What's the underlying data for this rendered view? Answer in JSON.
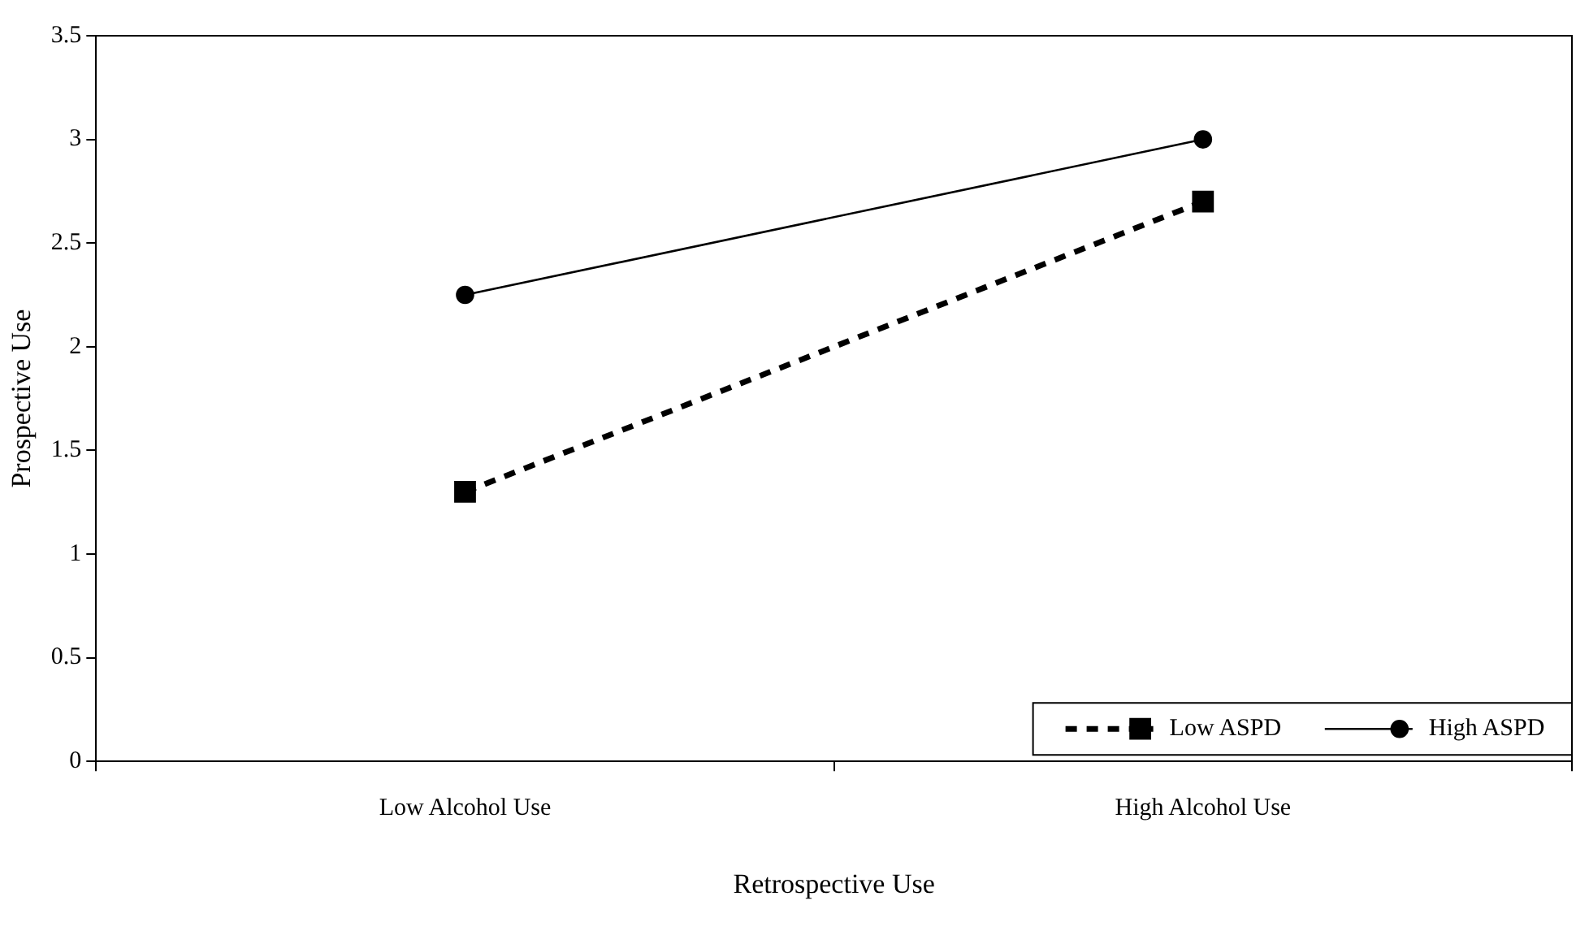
{
  "chart_data": {
    "type": "line",
    "xlabel": "Retrospective Use",
    "ylabel": "Prospective Use",
    "categories": [
      "Low Alcohol Use",
      "High Alcohol Use"
    ],
    "series": [
      {
        "name": "Low ASPD",
        "color": "#000000",
        "values": [
          1.3,
          2.7
        ],
        "marker": "square",
        "line_style": "dashed"
      },
      {
        "name": "High ASPD",
        "color": "#000000",
        "values": [
          2.25,
          3.0
        ],
        "marker": "circle",
        "line_style": "solid"
      }
    ],
    "ylim": [
      0,
      3.5
    ],
    "yticks": [
      0,
      0.5,
      1,
      1.5,
      2,
      2.5,
      3,
      3.5
    ],
    "grid": false,
    "legend": "bottom right"
  }
}
